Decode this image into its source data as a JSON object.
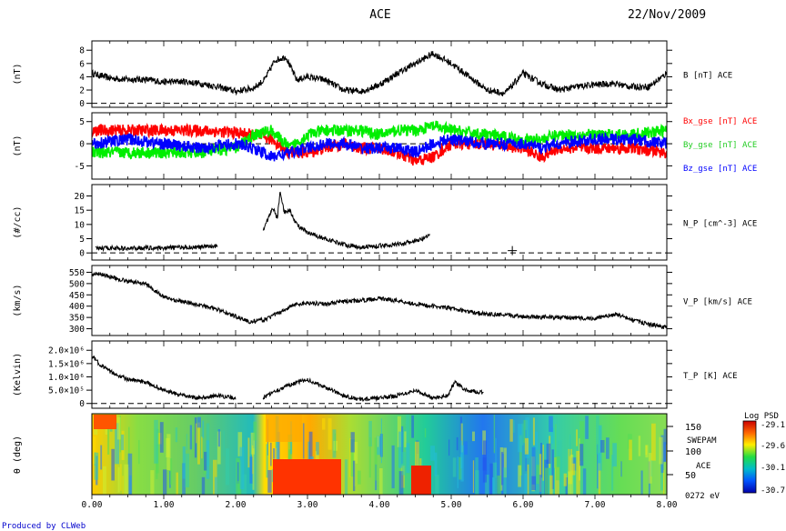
{
  "header": {
    "title": "ACE",
    "date": "22/Nov/2009"
  },
  "footer": {
    "credit": "Produced by CLWeb"
  },
  "colors": {
    "bx": "#ff0000",
    "by": "#00ee00",
    "bz": "#0000ff",
    "credit": "#0000cc"
  },
  "chart_data": [
    {
      "type": "line",
      "ylabel": "(nT)",
      "series": [
        {
          "name": "B [nT] ACE",
          "x": [
            0,
            0.25,
            0.5,
            0.75,
            1.0,
            1.25,
            1.5,
            1.75,
            2.0,
            2.25,
            2.4,
            2.55,
            2.7,
            2.85,
            3.0,
            3.25,
            3.5,
            3.75,
            4.0,
            4.25,
            4.5,
            4.75,
            5.0,
            5.25,
            5.5,
            5.75,
            6.0,
            6.25,
            6.5,
            6.75,
            7.0,
            7.25,
            7.5,
            7.75,
            8.0
          ],
          "y": [
            4.5,
            3.8,
            3.6,
            3.6,
            3.2,
            3.3,
            3.0,
            2.5,
            1.8,
            2.3,
            3.5,
            6.5,
            7.0,
            3.5,
            4.0,
            3.5,
            2.0,
            1.8,
            2.8,
            4.5,
            6.0,
            7.5,
            6.0,
            4.0,
            2.0,
            1.5,
            4.5,
            3.0,
            2.0,
            2.5,
            2.8,
            3.0,
            2.5,
            2.5,
            4.5
          ]
        }
      ],
      "yticks": [
        0,
        2,
        4,
        6,
        8
      ],
      "ylim": [
        -0.6,
        9.4
      ],
      "reference_line": 0
    },
    {
      "type": "line",
      "ylabel": "(nT)",
      "series": [
        {
          "name": "Bx_gse [nT] ACE",
          "x": [
            0,
            0.5,
            1.0,
            1.5,
            2.0,
            2.25,
            2.5,
            2.75,
            3.0,
            3.25,
            3.5,
            3.75,
            4.0,
            4.25,
            4.5,
            4.75,
            5.0,
            5.5,
            6.0,
            6.25,
            6.5,
            7.0,
            7.5,
            8.0
          ],
          "y": [
            3,
            3,
            3,
            3,
            2.5,
            2,
            1,
            -2,
            -2,
            -1,
            0,
            -1,
            -1,
            -2,
            -4,
            -3,
            0,
            0,
            -1,
            -3,
            -1,
            -1,
            -1,
            -2
          ]
        },
        {
          "name": "By_gse [nT] ACE",
          "x": [
            0,
            0.5,
            1.0,
            1.5,
            2.0,
            2.25,
            2.5,
            2.75,
            3.0,
            3.25,
            3.5,
            3.75,
            4.0,
            4.25,
            4.5,
            4.75,
            5.0,
            5.5,
            6.0,
            6.25,
            6.5,
            7.0,
            7.5,
            8.0
          ],
          "y": [
            -2,
            -2,
            -2,
            -2,
            -1,
            2,
            3,
            -1,
            2,
            3,
            3,
            3,
            2,
            3,
            3,
            4,
            3,
            2,
            1,
            1,
            2,
            2,
            2,
            3
          ]
        },
        {
          "name": "Bz_gse [nT] ACE",
          "x": [
            0,
            0.5,
            1.0,
            1.5,
            2.0,
            2.25,
            2.5,
            2.75,
            3.0,
            3.25,
            3.5,
            3.75,
            4.0,
            4.25,
            4.5,
            4.75,
            5.0,
            5.5,
            6.0,
            6.25,
            6.5,
            7.0,
            7.5,
            8.0
          ],
          "y": [
            0,
            1,
            0,
            -1,
            0,
            -1,
            -3,
            -2,
            -1,
            0,
            0,
            -1,
            -1,
            -1,
            -2,
            0,
            1,
            0,
            0,
            -1,
            0,
            1,
            1,
            0
          ]
        }
      ],
      "yticks": [
        -5,
        0,
        5
      ],
      "ylim": [
        -8,
        7
      ],
      "reference_line": 0
    },
    {
      "type": "line",
      "ylabel": "(#/cc)",
      "series": [
        {
          "name": "N_P [cm^-3] ACE",
          "segments": [
            {
              "x": [
                0.05,
                0.25,
                0.5,
                0.75,
                1.0,
                1.25,
                1.5,
                1.75
              ],
              "y": [
                1.5,
                1.8,
                1.5,
                1.8,
                1.8,
                2.0,
                2.0,
                2.5
              ]
            },
            {
              "x": [
                2.38,
                2.45,
                2.52,
                2.58,
                2.62,
                2.68,
                2.75,
                2.85,
                3.0,
                3.25,
                3.5,
                3.75,
                4.0,
                4.25,
                4.5,
                4.7
              ],
              "y": [
                8,
                12,
                16,
                12,
                22,
                14,
                15,
                10,
                7,
                5,
                3,
                2,
                2.5,
                3,
                4,
                6
              ]
            }
          ]
        }
      ],
      "yticks": [
        0,
        5,
        10,
        15,
        20
      ],
      "ylim": [
        -2.5,
        24
      ],
      "reference_line": 0,
      "marker": {
        "x": 5.85,
        "y": 0.8
      }
    },
    {
      "type": "line",
      "ylabel": "(km/s)",
      "series": [
        {
          "name": "V_P [km/s] ACE",
          "x": [
            0,
            0.1,
            0.25,
            0.5,
            0.75,
            1.0,
            1.25,
            1.5,
            1.75,
            2.0,
            2.2,
            2.4,
            2.6,
            2.8,
            3.0,
            3.25,
            3.5,
            3.75,
            4.0,
            4.25,
            4.5,
            4.75,
            5.0,
            5.25,
            5.5,
            6.0,
            6.5,
            7.0,
            7.3,
            7.5,
            7.75,
            8.0
          ],
          "y": [
            540,
            545,
            530,
            510,
            500,
            440,
            420,
            405,
            385,
            355,
            330,
            340,
            370,
            405,
            415,
            410,
            420,
            425,
            435,
            425,
            410,
            400,
            390,
            375,
            365,
            355,
            350,
            345,
            365,
            340,
            320,
            305
          ]
        }
      ],
      "yticks": [
        300,
        350,
        400,
        450,
        500,
        550
      ],
      "ylim": [
        270,
        580
      ],
      "reference_line": null
    },
    {
      "type": "line",
      "ylabel": "(Kelvin)",
      "series": [
        {
          "name": "T_P [K] ACE",
          "segments": [
            {
              "x": [
                0,
                0.1,
                0.25,
                0.5,
                0.75,
                1.0,
                1.25,
                1.5,
                1.75,
                2.0
              ],
              "y": [
                1800000,
                1500000,
                1200000,
                900000,
                800000,
                500000,
                300000,
                200000,
                300000,
                200000
              ]
            },
            {
              "x": [
                2.38,
                2.5,
                2.75,
                3.0,
                3.25,
                3.5,
                3.75,
                4.0,
                4.25,
                4.5,
                4.75,
                4.95,
                5.05,
                5.2,
                5.45
              ],
              "y": [
                200000,
                400000,
                700000,
                900000,
                600000,
                300000,
                150000,
                200000,
                300000,
                500000,
                200000,
                300000,
                800000,
                500000,
                400000
              ]
            }
          ]
        }
      ],
      "yticks": [
        0,
        500000,
        1000000,
        1500000,
        2000000
      ],
      "ytick_labels": [
        "0",
        "5.0×10⁵",
        "1.0×10⁶",
        "1.5×10⁶",
        "2.0×10⁶"
      ],
      "ylim": [
        -180000,
        2350000
      ],
      "reference_line": 0
    },
    {
      "type": "heatmap",
      "ylabel": "θ (deg)",
      "right_ticks": [
        "150",
        "100",
        "50"
      ],
      "right_labels": [
        "SWEPAM",
        "ACE",
        "0272 eV"
      ],
      "colorbar": {
        "title": "Log PSD",
        "ticks": [
          "-29.1",
          "-29.6",
          "-30.1",
          "-30.7"
        ]
      }
    }
  ],
  "xaxis": {
    "ticks": [
      "0.00",
      "1.00",
      "2.00",
      "3.00",
      "4.00",
      "5.00",
      "6.00",
      "7.00",
      "8.00"
    ],
    "range": [
      0,
      8
    ]
  }
}
